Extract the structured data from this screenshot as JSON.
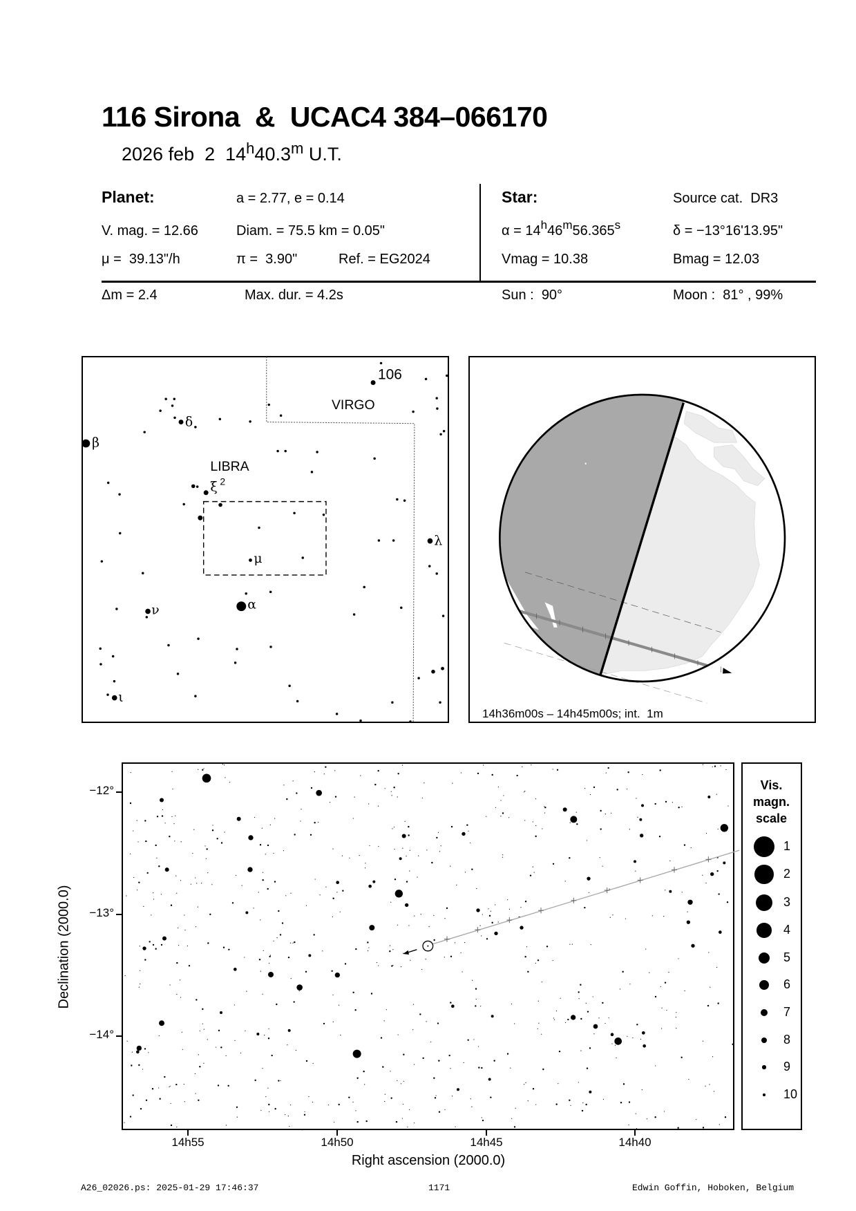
{
  "header": {
    "title": "116 Sirona  &  UCAC4 384–066170",
    "subtitle": {
      "date": "2026 feb  2  ",
      "hours": "14",
      "h": "h",
      "minutes": "40.3",
      "m": "m",
      "suffix": " U.T."
    }
  },
  "planet": {
    "heading": "Planet:",
    "orbit": "a = 2.77, e = 0.14",
    "vmag": "V. mag. = 12.66",
    "diam": "Diam. = 75.5 km = 0.05\"",
    "mu": "μ =  39.13\"/h",
    "pi": "π =  3.90\"",
    "ref": "Ref. = EG2024"
  },
  "star": {
    "heading": "Star:",
    "source": "Source cat.  DR3",
    "alpha": {
      "prefix": "α = 14",
      "h": "h",
      "min": "46",
      "m": "m",
      "sec": "56.365",
      "s": "s"
    },
    "delta": "δ = −13°16'13.95\"",
    "vmag": "Vmag = 10.38",
    "bmag": "Bmag = 12.03"
  },
  "event": {
    "dm": "Δm = 2.4",
    "maxdur": "Max. dur. = 4.2s",
    "sun": "Sun :  90°",
    "moon": "Moon :  81° , 99%"
  },
  "finder": {
    "constellations": [
      "VIRGO",
      "LIBRA"
    ],
    "labels": {
      "n106": "106",
      "beta": "β",
      "delta": "δ",
      "xi": "ξ",
      "xi_sup": "2",
      "mu": "μ",
      "lambda": "λ",
      "alpha": "α",
      "nu": "ν",
      "iota": "ι"
    }
  },
  "globe": {
    "caption": "14h36m00s – 14h45m00s; int.  1m",
    "colors": {
      "night": "#a9a9a9",
      "land": "#ececec",
      "ocean": "#ffffff"
    }
  },
  "starchart": {
    "xlabel": "Right ascension (2000.0)",
    "ylabel": "Declination (2000.0)",
    "xticks": [
      "14h55",
      "14h50",
      "14h45",
      "14h40"
    ],
    "yticks": [
      "−12°",
      "−13°",
      "−14°"
    ],
    "legend": {
      "title": [
        "Vis.",
        "magn.",
        "scale"
      ],
      "mags": [
        "1",
        "2",
        "3",
        "4",
        "5",
        "6",
        "7",
        "8",
        "9",
        "10"
      ]
    }
  },
  "footer": {
    "file": "A26_02026.ps: 2025-01-29 17:46:37",
    "page": "1171",
    "author": "Edwin Goffin, Hoboken, Belgium"
  }
}
